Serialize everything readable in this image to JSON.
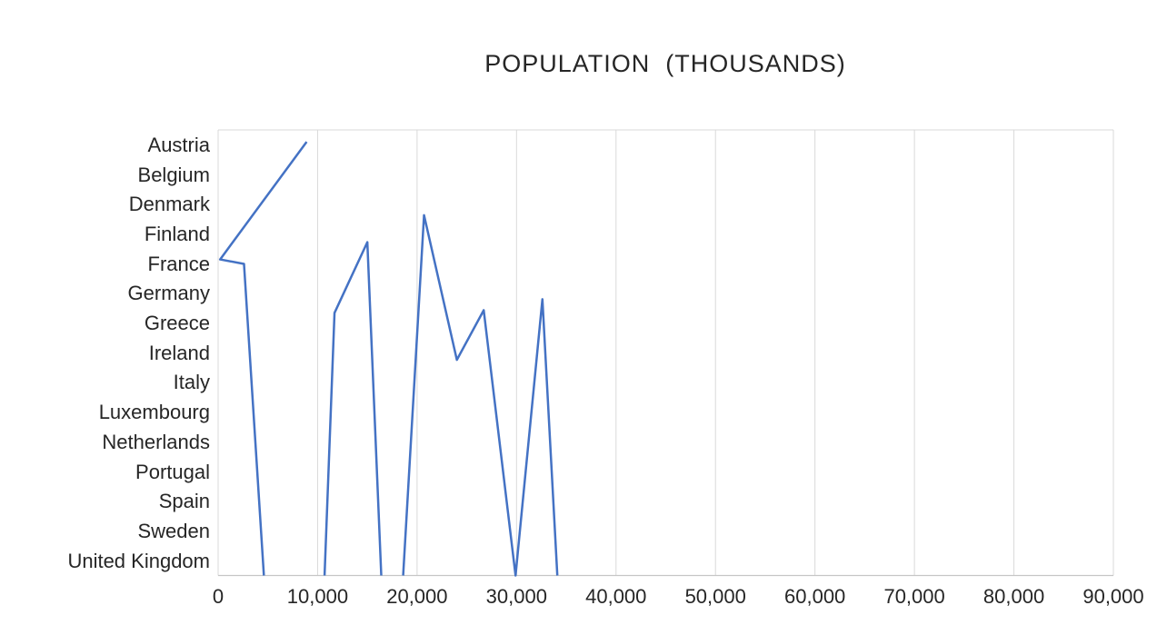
{
  "chart": {
    "title": "POPULATION  (THOUSANDS)",
    "title_color": "#262626",
    "axis_label_color": "#262626",
    "gridline_color": "#D9D9D9",
    "axis_line_color": "#C6C6C6",
    "line_color": "#4472C4",
    "line_width": 2.5
  },
  "chart_data": {
    "type": "line",
    "title": "POPULATION  (THOUSANDS)",
    "orientation": "value axis horizontal (bottom), category axis vertical (left)",
    "y_categories": [
      "Austria",
      "Belgium",
      "Denmark",
      "Finland",
      "France",
      "Germany",
      "Greece",
      "Ireland",
      "Italy",
      "Luxembourg",
      "Netherlands",
      "Portugal",
      "Spain",
      "Sweden",
      "United Kingdom"
    ],
    "x_ticks": [
      "0",
      "10,000",
      "20,000",
      "30,000",
      "40,000",
      "50,000",
      "60,000",
      "70,000",
      "80,000",
      "90,000"
    ],
    "x_min": 0,
    "x_max": 90000,
    "x_tick_step": 10000,
    "grid": "vertical gridlines at every x tick; plot area bordered top/left/right in light gray",
    "legend": "none",
    "series_note": "Single blue polyline. y is given in category-row units: 0 = top of plot, 15 = bottom axis; country band k occupies rows k-1..k (center k-0.5). Where the series dips below the axis it is clipped, producing three visible runs that start/end on the bottom axis.",
    "line_runs": [
      [
        {
          "x": 8900,
          "row": 0.4
        },
        {
          "x": 200,
          "row": 4.36
        },
        {
          "x": 2600,
          "row": 4.51
        },
        {
          "x": 4600,
          "row": 15
        }
      ],
      [
        {
          "x": 10700,
          "row": 15
        },
        {
          "x": 11700,
          "row": 6.16
        },
        {
          "x": 15000,
          "row": 3.78
        },
        {
          "x": 16400,
          "row": 15
        }
      ],
      [
        {
          "x": 18600,
          "row": 15
        },
        {
          "x": 20700,
          "row": 2.87
        },
        {
          "x": 24000,
          "row": 7.74
        },
        {
          "x": 26700,
          "row": 6.07
        },
        {
          "x": 29900,
          "row": 15
        },
        {
          "x": 32600,
          "row": 5.7
        },
        {
          "x": 34100,
          "row": 15
        }
      ]
    ]
  }
}
